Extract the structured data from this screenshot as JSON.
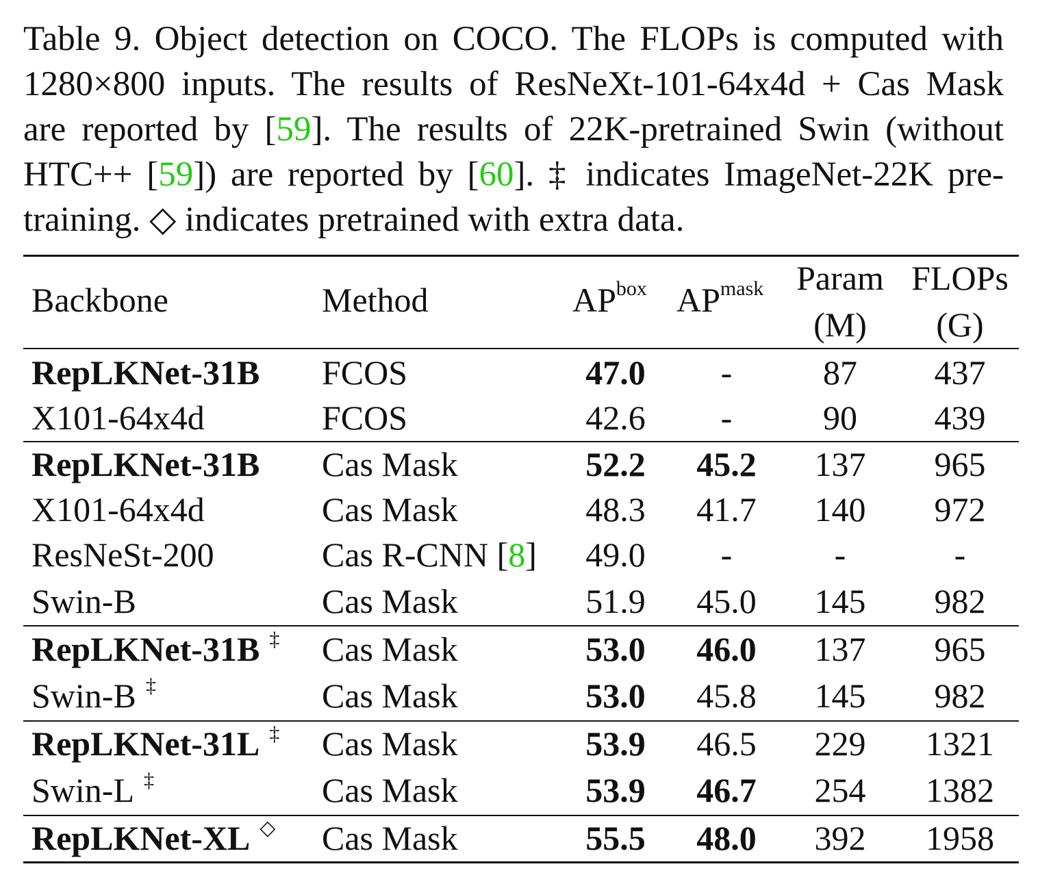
{
  "caption": {
    "label": "Table 9.",
    "lines": [
      [
        "Table 9. Object detection on COCO. The FLOPs is computed with"
      ],
      [
        "1280×800 inputs. The results of ResNeXt-101-64x4d + Cas Mask"
      ],
      [
        "are reported by [",
        "59",
        "]. The results of 22K-pretrained Swin (without"
      ],
      [
        "HTC++ [",
        "59",
        "]) are reported by [",
        "60",
        "]. ‡ indicates ImageNet-22K pre-"
      ],
      [
        "training. ◇ indicates pretrained with extra data."
      ]
    ]
  },
  "table": {
    "headers": {
      "backbone": "Backbone",
      "method": "Method",
      "ap_box": "AP",
      "ap_box_sup": "box",
      "ap_mask": "AP",
      "ap_mask_sup": "mask",
      "param_1": "Param",
      "param_2": "(M)",
      "flops_1": "FLOPs",
      "flops_2": "(G)"
    },
    "rows": [
      {
        "backbone": "RepLKNet-31B",
        "mark": "",
        "method": "FCOS",
        "cite": "",
        "ap_box": "47.0",
        "ap_mask": "-",
        "param": "87",
        "flops": "437"
      },
      {
        "backbone": "X101-64x4d",
        "mark": "",
        "method": "FCOS",
        "cite": "",
        "ap_box": "42.6",
        "ap_mask": "-",
        "param": "90",
        "flops": "439"
      },
      {
        "backbone": "RepLKNet-31B",
        "mark": "",
        "method": "Cas Mask",
        "cite": "",
        "ap_box": "52.2",
        "ap_mask": "45.2",
        "param": "137",
        "flops": "965"
      },
      {
        "backbone": "X101-64x4d",
        "mark": "",
        "method": "Cas Mask",
        "cite": "",
        "ap_box": "48.3",
        "ap_mask": "41.7",
        "param": "140",
        "flops": "972"
      },
      {
        "backbone": "ResNeSt-200",
        "mark": "",
        "method": "Cas R-CNN [",
        "cite": "8",
        "ap_box": "49.0",
        "ap_mask": "-",
        "param": "-",
        "flops": "-"
      },
      {
        "backbone": "Swin-B",
        "mark": "",
        "method": "Cas Mask",
        "cite": "",
        "ap_box": "51.9",
        "ap_mask": "45.0",
        "param": "145",
        "flops": "982"
      },
      {
        "backbone": "RepLKNet-31B",
        "mark": "‡",
        "method": "Cas Mask",
        "cite": "",
        "ap_box": "53.0",
        "ap_mask": "46.0",
        "param": "137",
        "flops": "965"
      },
      {
        "backbone": "Swin-B",
        "mark": "‡",
        "method": "Cas Mask",
        "cite": "",
        "ap_box": "53.0",
        "ap_mask": "45.8",
        "param": "145",
        "flops": "982"
      },
      {
        "backbone": "RepLKNet-31L",
        "mark": "‡",
        "method": "Cas Mask",
        "cite": "",
        "ap_box": "53.9",
        "ap_mask": "46.5",
        "param": "229",
        "flops": "1321"
      },
      {
        "backbone": "Swin-L",
        "mark": "‡",
        "method": "Cas Mask",
        "cite": "",
        "ap_box": "53.9",
        "ap_mask": "46.7",
        "param": "254",
        "flops": "1382"
      },
      {
        "backbone": "RepLKNet-XL",
        "mark": "◇",
        "method": "Cas Mask",
        "cite": "",
        "ap_box": "55.5",
        "ap_mask": "48.0",
        "param": "392",
        "flops": "1958"
      }
    ],
    "bold": {
      "backbone": [
        0,
        2,
        6,
        8,
        10
      ],
      "ap_box": [
        0,
        2,
        6,
        7,
        8,
        9,
        10
      ],
      "ap_mask": [
        2,
        6,
        9,
        10
      ]
    }
  }
}
